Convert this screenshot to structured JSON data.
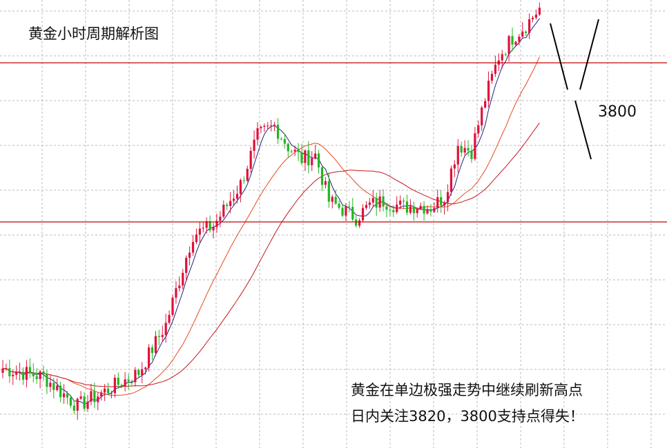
{
  "title": "黄金小时周期解析图",
  "notes": {
    "line1": "黄金在单边极强走势中继续刷新高点",
    "line2": "日内关注3820，3800支持点得失！"
  },
  "annotation": {
    "level_label": "3800"
  },
  "colors": {
    "up": "#e0103a",
    "down": "#22b521",
    "ma_fast": "#1a237e",
    "ma_mid": "#e8481c",
    "ma_slow": "#c4161c",
    "hline": "#c00000",
    "grid": "#b8b8b8",
    "annotation": "#000000"
  },
  "chart_data": {
    "type": "candlestick",
    "title": "黄金小时周期解析图",
    "grid": true,
    "price_anchors": [
      {
        "bar": 0,
        "price": 3654
      },
      {
        "bar": 12,
        "price": 3650
      },
      {
        "bar": 22,
        "price": 3636
      },
      {
        "bar": 30,
        "price": 3643
      },
      {
        "bar": 40,
        "price": 3652
      },
      {
        "bar": 48,
        "price": 3675
      },
      {
        "bar": 56,
        "price": 3718
      },
      {
        "bar": 62,
        "price": 3722
      },
      {
        "bar": 70,
        "price": 3742
      },
      {
        "bar": 75,
        "price": 3765
      },
      {
        "bar": 80,
        "price": 3770
      },
      {
        "bar": 84,
        "price": 3760
      },
      {
        "bar": 88,
        "price": 3754
      },
      {
        "bar": 92,
        "price": 3756
      },
      {
        "bar": 96,
        "price": 3734
      },
      {
        "bar": 100,
        "price": 3730
      },
      {
        "bar": 104,
        "price": 3726
      },
      {
        "bar": 108,
        "price": 3732
      },
      {
        "bar": 112,
        "price": 3734
      },
      {
        "bar": 118,
        "price": 3731
      },
      {
        "bar": 122,
        "price": 3732
      },
      {
        "bar": 126,
        "price": 3731
      },
      {
        "bar": 130,
        "price": 3736
      },
      {
        "bar": 134,
        "price": 3761
      },
      {
        "bar": 138,
        "price": 3758
      },
      {
        "bar": 142,
        "price": 3783
      },
      {
        "bar": 146,
        "price": 3803
      },
      {
        "bar": 150,
        "price": 3812
      },
      {
        "bar": 154,
        "price": 3818
      },
      {
        "bar": 158,
        "price": 3826
      }
    ],
    "bar_count": 159,
    "horizontal_levels": [
      3800,
      3724
    ],
    "ylim": [
      3616,
      3830
    ],
    "moving_averages": [
      "ma_fast",
      "ma_mid",
      "ma_slow"
    ]
  }
}
